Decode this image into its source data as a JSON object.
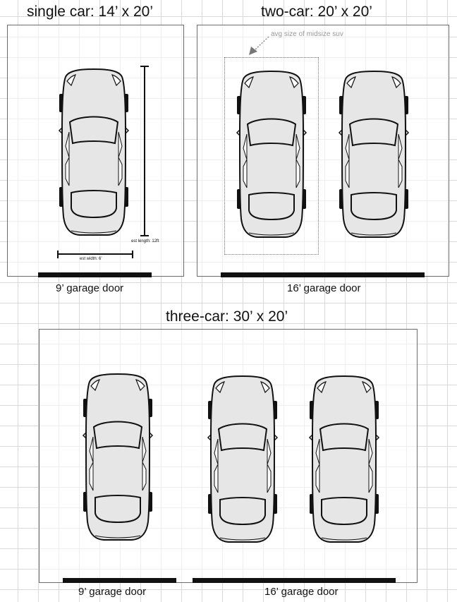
{
  "single": {
    "title": "single car: 14’ x 20’",
    "door_label": "9’ garage door",
    "length_label": "est length: 12ft",
    "width_label": "est width: 6’"
  },
  "two": {
    "title": "two-car: 20’ x 20’",
    "door_label": "16’ garage door",
    "suv_note": "avg size of midsize suv"
  },
  "three": {
    "title": "three-car: 30’ x 20’",
    "door_label_small": "9’ garage door",
    "door_label_large": "16’ garage door"
  },
  "colors": {
    "car_body": "#e6e6e6",
    "car_outline": "#111111",
    "door": "#111111",
    "grid": "#d9d9d9",
    "note": "#999999"
  }
}
